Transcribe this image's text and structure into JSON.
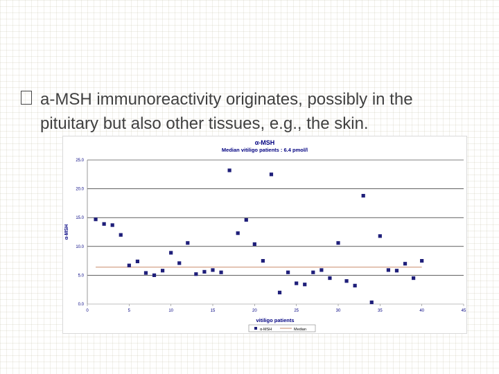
{
  "slide": {
    "bullet_glyph": "",
    "bullet_line1": "a-MSH immunoreactivity originates, possibly in the",
    "bullet_line2": "pituitary but also other tissues, e.g., the skin."
  },
  "chart_data": {
    "type": "scatter",
    "title": "α-MSH",
    "subtitle": "Median vitiligo patients : 6.4 pmol/l",
    "xlabel": "vitiligo patients",
    "ylabel": "α-MSH",
    "xlim": [
      0,
      45
    ],
    "ylim": [
      0,
      25
    ],
    "x_ticks": [
      "0",
      "5",
      "10",
      "15",
      "20",
      "25",
      "30",
      "35",
      "40",
      "45"
    ],
    "y_ticks": [
      "0.0",
      "5.0",
      "10.0",
      "15.0",
      "20.0",
      "25.0"
    ],
    "grid": true,
    "legend_position": "bottom",
    "colors": {
      "points": "#1f1f7a",
      "median": "#c98a6a"
    },
    "series": [
      {
        "name": "α-MSH",
        "x": [
          1,
          2,
          3,
          4,
          5,
          6,
          7,
          8,
          9,
          10,
          11,
          12,
          13,
          14,
          15,
          16,
          17,
          18,
          19,
          20,
          21,
          22,
          23,
          24,
          25,
          26,
          27,
          28,
          29,
          30,
          31,
          32,
          33,
          34,
          35,
          36,
          37,
          38,
          39,
          40
        ],
        "y": [
          14.7,
          13.9,
          13.7,
          12.0,
          6.7,
          7.4,
          5.4,
          5.0,
          5.8,
          8.9,
          7.1,
          10.6,
          5.2,
          5.6,
          5.9,
          5.5,
          23.2,
          12.3,
          14.6,
          10.4,
          7.5,
          22.5,
          2.0,
          5.5,
          3.6,
          3.4,
          5.5,
          5.9,
          4.5,
          10.6,
          4.0,
          3.2,
          18.8,
          0.3,
          11.8,
          5.9,
          5.8,
          7.0,
          4.5,
          7.5
        ]
      },
      {
        "name": "Median",
        "type": "line",
        "x": [
          1,
          40
        ],
        "y": [
          6.4,
          6.4
        ]
      }
    ]
  }
}
